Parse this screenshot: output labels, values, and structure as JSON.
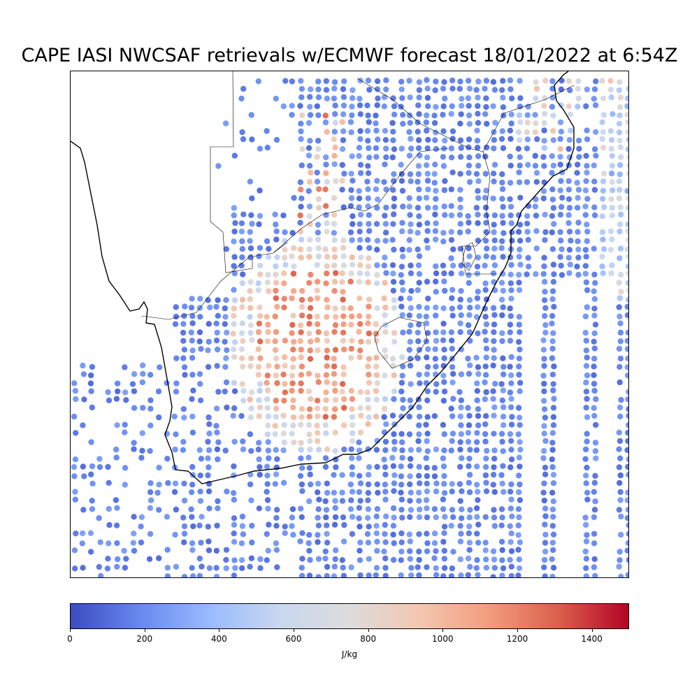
{
  "title": "CAPE IASI NWCSAF retrievals w/ECMWF forecast 18/01/2022 at 6:54Z",
  "colorbar": {
    "unit_label": "J/kg",
    "min": 0,
    "max": 1500,
    "ticks": [
      "0",
      "200",
      "400",
      "600",
      "800",
      "1000",
      "1200",
      "1400"
    ],
    "tick_values": [
      0,
      200,
      400,
      600,
      800,
      1000,
      1200,
      1400
    ],
    "colormap": "coolwarm",
    "colors": [
      "#3b4cc0",
      "#6889ee",
      "#9abbff",
      "#c9d7f0",
      "#dddcdc",
      "#f3c7b1",
      "#f39d7e",
      "#db5f4a",
      "#b40426"
    ]
  },
  "map": {
    "region": "Southern Africa",
    "layers": [
      "coastline",
      "country-borders",
      "retrieval-points"
    ],
    "coastline_color": "#000000"
  },
  "chart_data": {
    "type": "scatter",
    "title": "CAPE IASI NWCSAF retrievals w/ECMWF forecast 18/01/2022 at 6:54Z",
    "colorbar_label": "J/kg",
    "value_range": [
      0,
      1500
    ],
    "xlabel": "",
    "ylabel": "",
    "grid": false,
    "legend": "colorbar-bottom",
    "series": [
      {
        "values_summary": {
          "ocean_east_and_south": 100,
          "interior_northeast": 120,
          "high_cape_core_central_south_africa": 1300,
          "margin_ring": 700,
          "atlantic_west": 150
        }
      }
    ]
  }
}
